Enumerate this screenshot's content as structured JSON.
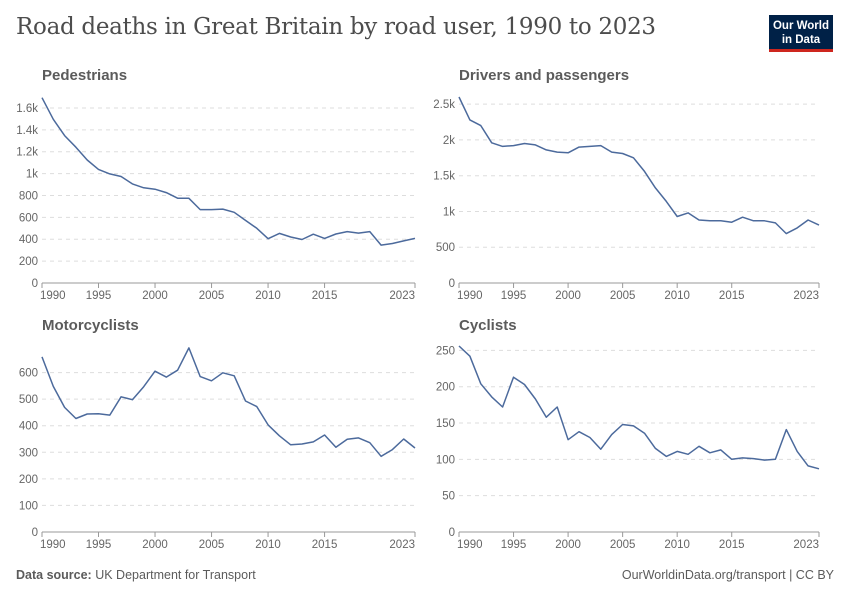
{
  "header": {
    "title": "Road deaths in Great Britain by road user, 1990 to 2023",
    "logo": "Our World in Data"
  },
  "footer": {
    "source_label": "Data source:",
    "source": "UK Department for Transport",
    "link": "OurWorldinData.org/transport | CC BY"
  },
  "colors": {
    "line": "#4c6a9c",
    "grid": "#dddddd",
    "logo_bg": "#002147",
    "logo_accent": "#ce261e"
  },
  "chart_data": [
    {
      "type": "line",
      "title": "Pedestrians",
      "ylim": [
        0,
        1700
      ],
      "yticks": [
        0,
        200,
        400,
        600,
        800,
        1000,
        1200,
        1400,
        1600
      ],
      "ytick_labels": [
        "0",
        "200",
        "400",
        "600",
        "800",
        "1k",
        "1.2k",
        "1.4k",
        "1.6k"
      ],
      "xticks": [
        1990,
        1995,
        2000,
        2005,
        2010,
        2015,
        2023
      ],
      "xtick_labels": [
        "1990",
        "1995",
        "2000",
        "2005",
        "2010",
        "2015",
        "2023"
      ],
      "x_start": 1990,
      "values": [
        1694,
        1496,
        1347,
        1241,
        1124,
        1038,
        997,
        973,
        906,
        870,
        857,
        826,
        775,
        774,
        671,
        671,
        675,
        646,
        572,
        500,
        405,
        453,
        420,
        398,
        446,
        408,
        448,
        470,
        456,
        470,
        346,
        361,
        385,
        408
      ]
    },
    {
      "type": "line",
      "title": "Drivers and passengers",
      "ylim": [
        0,
        2600
      ],
      "yticks": [
        0,
        500,
        1000,
        1500,
        2000,
        2500
      ],
      "ytick_labels": [
        "0",
        "500",
        "1k",
        "1.5k",
        "2k",
        "2.5k"
      ],
      "xticks": [
        1990,
        1995,
        2000,
        2005,
        2010,
        2015,
        2023
      ],
      "xtick_labels": [
        "1990",
        "1995",
        "2000",
        "2005",
        "2010",
        "2015",
        "2023"
      ],
      "x_start": 1990,
      "values": [
        2600,
        2280,
        2200,
        1960,
        1910,
        1920,
        1950,
        1930,
        1860,
        1830,
        1820,
        1900,
        1910,
        1920,
        1830,
        1810,
        1750,
        1560,
        1330,
        1140,
        930,
        980,
        880,
        870,
        870,
        850,
        920,
        870,
        870,
        840,
        690,
        770,
        880,
        810
      ]
    },
    {
      "type": "line",
      "title": "Motorcyclists",
      "ylim": [
        0,
        700
      ],
      "yticks": [
        0,
        100,
        200,
        300,
        400,
        500,
        600
      ],
      "ytick_labels": [
        "0",
        "100",
        "200",
        "300",
        "400",
        "500",
        "600"
      ],
      "xticks": [
        1990,
        1995,
        2000,
        2005,
        2010,
        2015,
        2023
      ],
      "xtick_labels": [
        "1990",
        "1995",
        "2000",
        "2005",
        "2010",
        "2015",
        "2023"
      ],
      "x_start": 1990,
      "values": [
        659,
        548,
        469,
        427,
        444,
        445,
        440,
        509,
        498,
        547,
        605,
        583,
        609,
        693,
        585,
        569,
        599,
        588,
        493,
        472,
        403,
        362,
        328,
        331,
        339,
        365,
        319,
        349,
        354,
        336,
        285,
        310,
        350,
        316
      ]
    },
    {
      "type": "line",
      "title": "Cyclists",
      "ylim": [
        0,
        256
      ],
      "yticks": [
        0,
        50,
        100,
        150,
        200,
        250
      ],
      "ytick_labels": [
        "0",
        "50",
        "100",
        "150",
        "200",
        "250"
      ],
      "xticks": [
        1990,
        1995,
        2000,
        2005,
        2010,
        2015,
        2023
      ],
      "xtick_labels": [
        "1990",
        "1995",
        "2000",
        "2005",
        "2010",
        "2015",
        "2023"
      ],
      "x_start": 1990,
      "values": [
        256,
        242,
        204,
        186,
        172,
        213,
        203,
        183,
        158,
        172,
        127,
        138,
        130,
        114,
        134,
        148,
        146,
        136,
        115,
        104,
        111,
        107,
        118,
        109,
        113,
        100,
        102,
        101,
        99,
        100,
        141,
        111,
        91,
        87
      ]
    }
  ]
}
